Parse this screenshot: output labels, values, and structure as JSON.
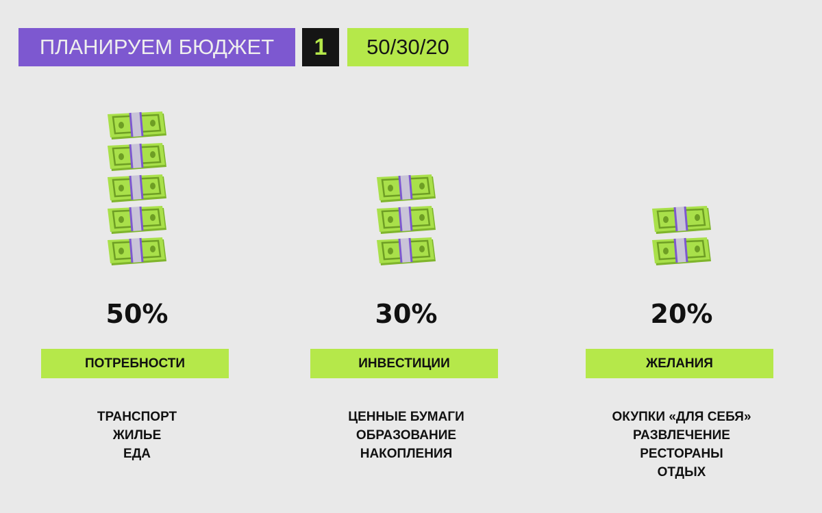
{
  "header": {
    "title": "ПЛАНИРУЕМ БЮДЖЕТ",
    "number": "1",
    "tag": "50/30/20"
  },
  "colors": {
    "purple": "#7d58d0",
    "lime": "#b5e84a",
    "dark": "#151515",
    "background": "#e9e9e9"
  },
  "columns": [
    {
      "percent": "50%",
      "share": 50,
      "bills": 5,
      "label": "ПОТРЕБНОСТИ",
      "items": [
        "ТРАНСПОРТ",
        "ЖИЛЬЕ",
        "ЕДА"
      ]
    },
    {
      "percent": "30%",
      "share": 30,
      "bills": 3,
      "label": "ИНВЕСТИЦИИ",
      "items": [
        "ЦЕННЫЕ БУМАГИ",
        "ОБРАЗОВАНИЕ",
        "НАКОПЛЕНИЯ"
      ]
    },
    {
      "percent": "20%",
      "share": 20,
      "bills": 2,
      "label": "ЖЕЛАНИЯ",
      "items": [
        "ОКУПКИ «ДЛЯ СЕБЯ»",
        "РАЗВЛЕЧЕНИЕ",
        "РЕСТОРАНЫ",
        "ОТДЫХ"
      ]
    }
  ]
}
